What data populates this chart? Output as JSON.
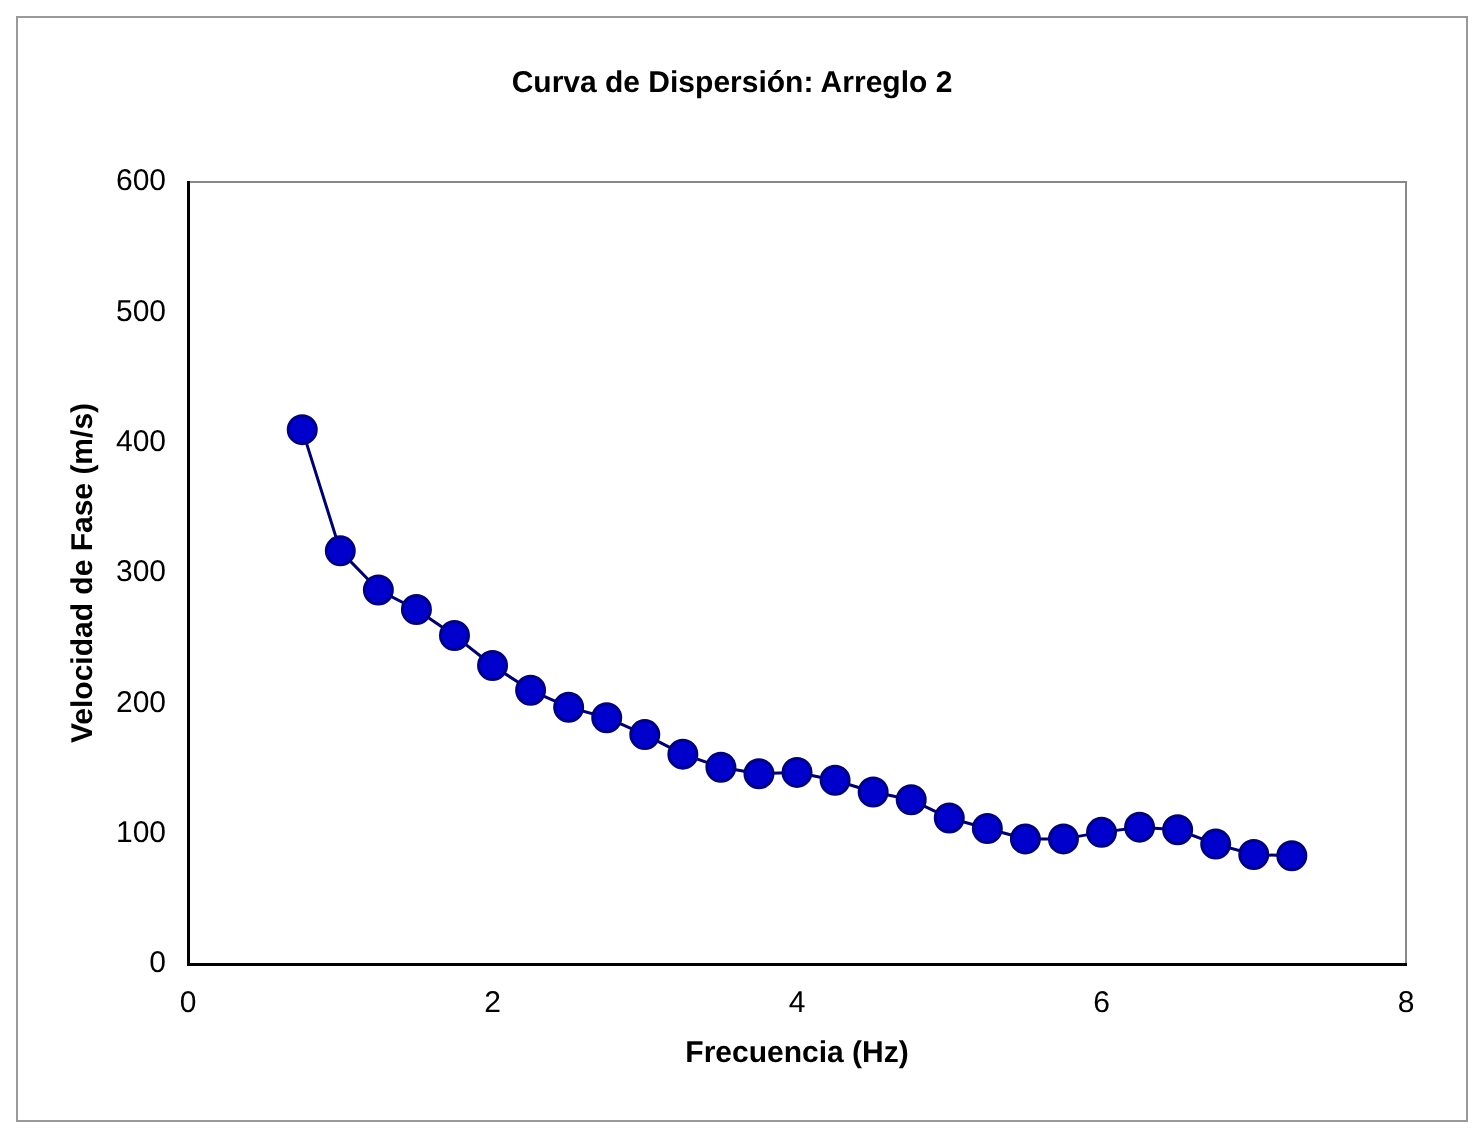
{
  "chart_data": {
    "type": "line",
    "title": "Curva de Dispersión: Arreglo 2",
    "xlabel": "Frecuencia (Hz)",
    "ylabel": "Velocidad de Fase (m/s)",
    "x": [
      0.75,
      1,
      1.25,
      1.5,
      1.75,
      2,
      2.25,
      2.5,
      2.75,
      3,
      3.25,
      3.5,
      3.75,
      4,
      4.25,
      4.5,
      4.75,
      5,
      5.25,
      5.5,
      5.75,
      6,
      6.25,
      6.5,
      6.75,
      7,
      7.25
    ],
    "series": [
      {
        "color": "#0000cc",
        "values": [
          410,
          317,
          287,
          272,
          252,
          229,
          210,
          197,
          189,
          176,
          161,
          151,
          146,
          147,
          141,
          132,
          126,
          112,
          104,
          96,
          96,
          101,
          105,
          103,
          92,
          84,
          83
        ]
      }
    ],
    "xlim": [
      0,
      8
    ],
    "xticks": [
      0,
      2,
      4,
      6,
      8
    ],
    "ylim": [
      0,
      600
    ],
    "yticks": [
      0,
      100,
      200,
      300,
      400,
      500,
      600
    ],
    "grid": false,
    "legend": false,
    "marker": "circle",
    "line_style": "solid"
  }
}
